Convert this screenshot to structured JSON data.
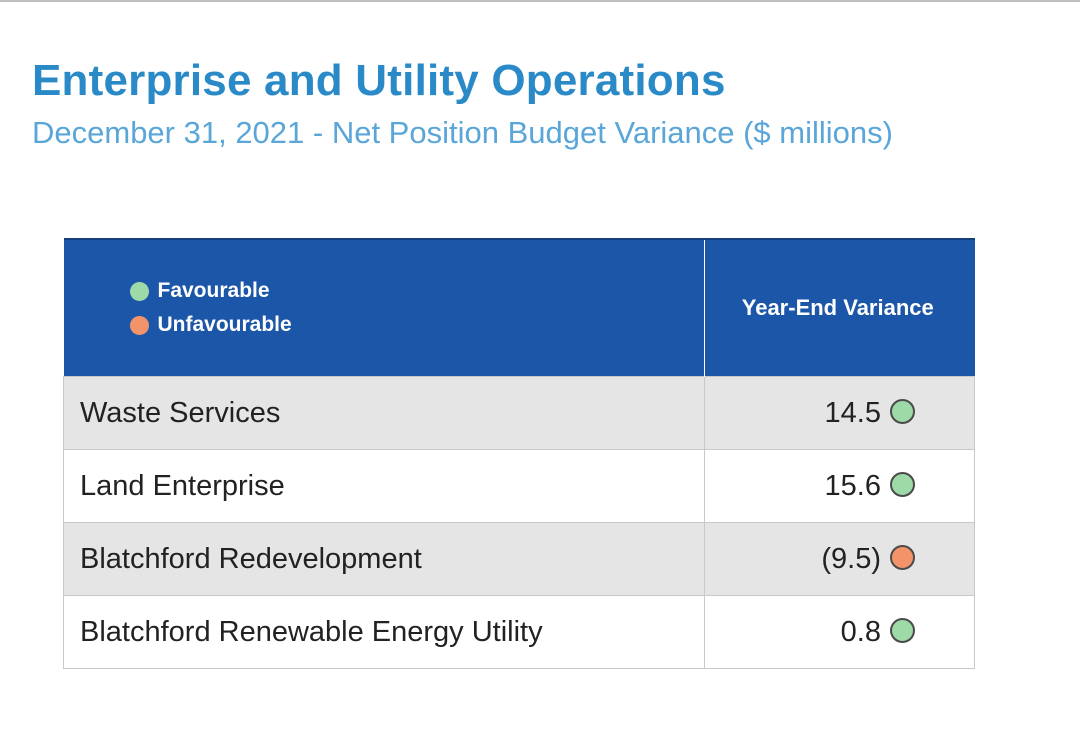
{
  "title": "Enterprise and Utility Operations",
  "subtitle": "December 31, 2021 - Net Position Budget Variance ($ millions)",
  "colors": {
    "favourable": "#9ed9a8",
    "unfavourable": "#f2936a",
    "header": "#1c56a8",
    "title": "#2a8ac8"
  },
  "table": {
    "legend": {
      "favourable_label": "Favourable",
      "unfavourable_label": "Unfavourable"
    },
    "value_header": "Year-End Variance",
    "rows": [
      {
        "name": "Waste Services",
        "value": "14.5",
        "status": "favourable"
      },
      {
        "name": "Land Enterprise",
        "value": "15.6",
        "status": "favourable"
      },
      {
        "name": "Blatchford Redevelopment",
        "value": "(9.5)",
        "status": "unfavourable"
      },
      {
        "name": "Blatchford Renewable Energy Utility",
        "value": "0.8",
        "status": "favourable"
      }
    ]
  }
}
